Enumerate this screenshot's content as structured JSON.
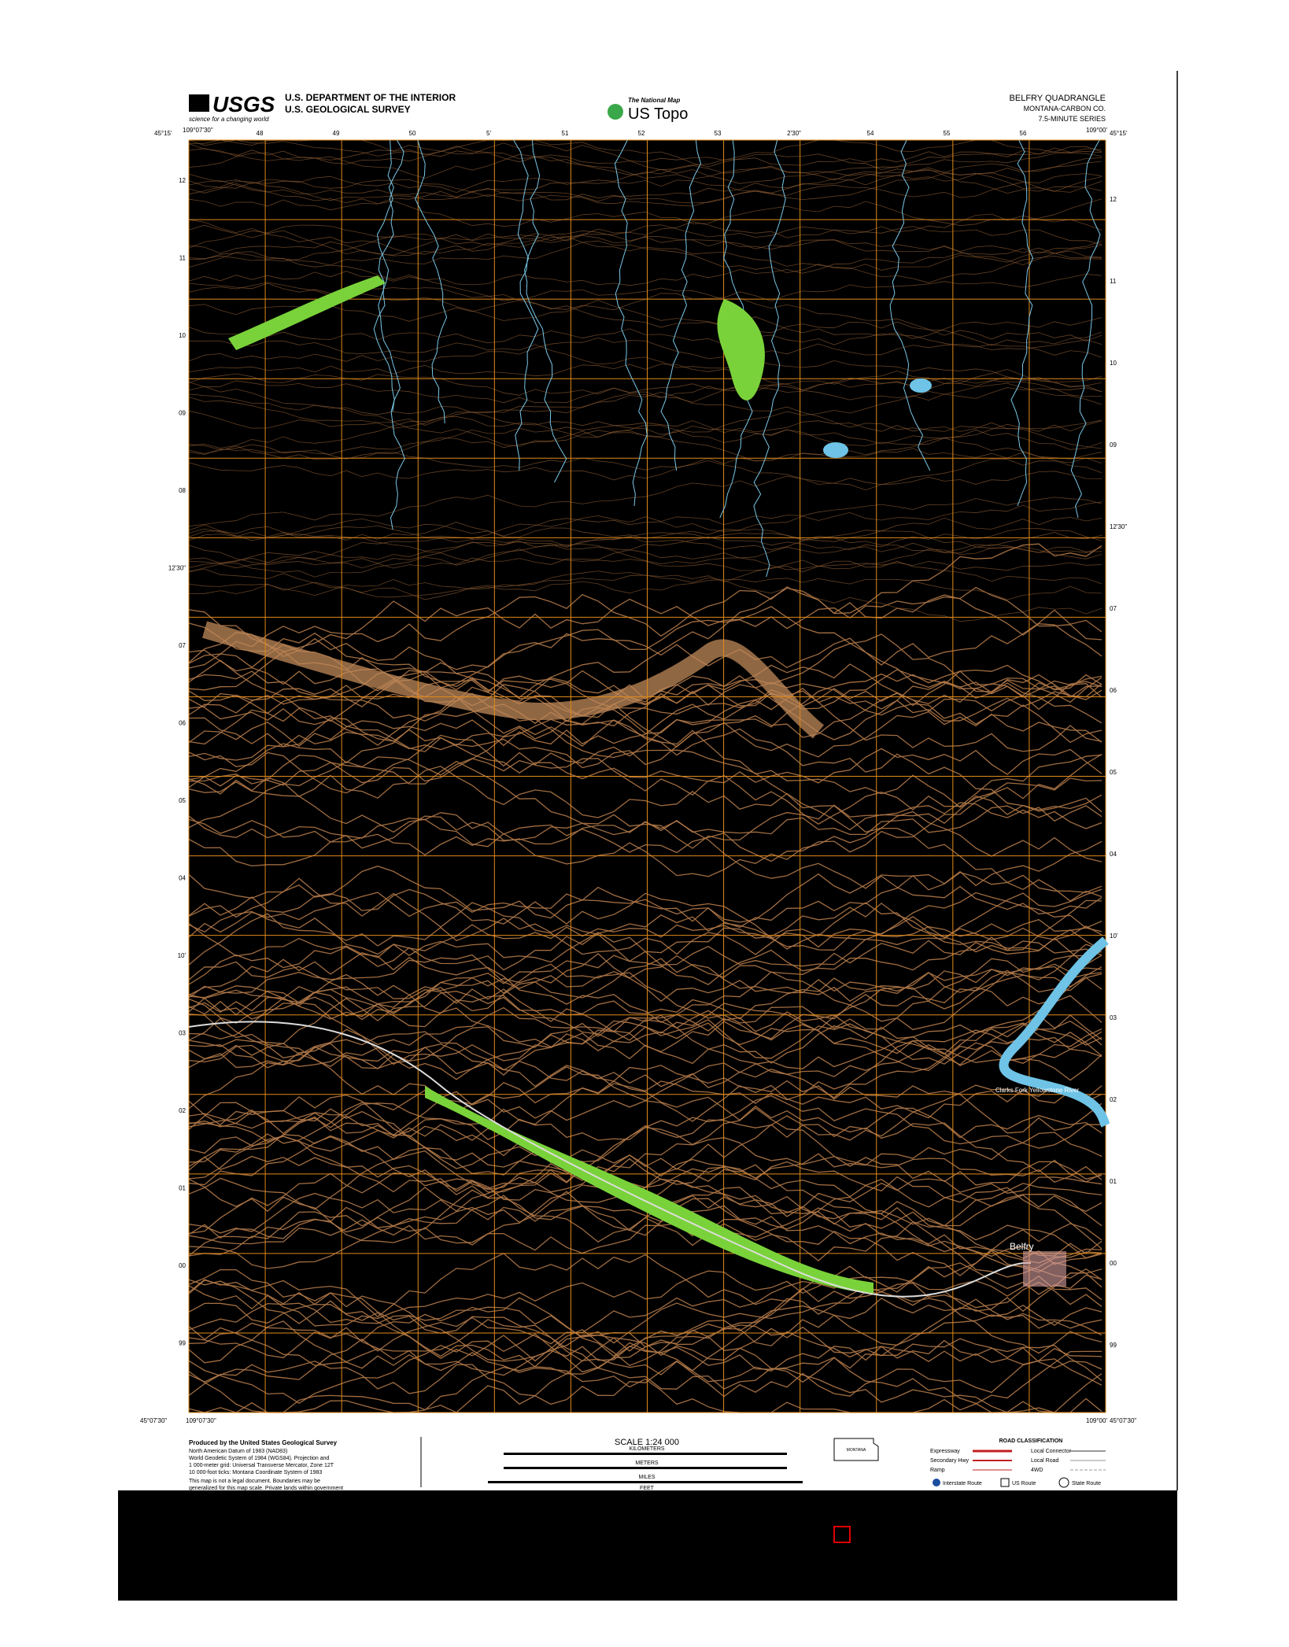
{
  "header": {
    "logo": "USGS",
    "logo_tagline": "science for a changing world",
    "agency_line1": "U.S. DEPARTMENT OF THE INTERIOR",
    "agency_line2": "U.S. GEOLOGICAL SURVEY",
    "national_map": "The National Map",
    "us_topo": "US Topo",
    "quad_title": "BELFRY QUADRANGLE",
    "quad_state": "MONTANA-CARBON CO.",
    "quad_series": "7.5-MINUTE SERIES"
  },
  "map": {
    "corner_top_left": "45°15'",
    "lon_top_left": "109°07'30\"",
    "lon_top_right": "109°00'",
    "corner_top_right": "45°15'",
    "corner_bottom_left": "45°07'30\"",
    "lon_bottom_left": "109°07'30\"",
    "lon_bottom_right": "109°00'",
    "corner_bottom_right": "45°07'30\"",
    "top_labels": [
      "48",
      "49",
      "50",
      "5'",
      "51",
      "52",
      "53",
      "2'30\"",
      "54",
      "55",
      "56"
    ],
    "left_labels": [
      "12",
      "11",
      "10",
      "09",
      "08",
      "12'30\"",
      "07",
      "06",
      "05",
      "04",
      "10'",
      "03",
      "02",
      "01",
      "00",
      "99"
    ],
    "right_labels": [
      "12",
      "11",
      "10",
      "09",
      "12'30\"",
      "07",
      "06",
      "05",
      "04",
      "10'",
      "03",
      "02",
      "01",
      "00",
      "99"
    ],
    "places": [
      "Belfry",
      "Clarks Fork Yellowstone River"
    ]
  },
  "footer": {
    "producer": "Produced by the United States Geological Survey",
    "datum_lines": [
      "North American Datum of 1983 (NAD83)",
      "World Geodetic System of 1984 (WGS84). Projection and",
      "1 000-meter grid: Universal Transverse Mercator, Zone 12T",
      "10 000-foot ticks: Montana Coordinate System of 1983"
    ],
    "disclaimer": [
      "This map is not a legal document. Boundaries may be",
      "generalized for this map scale. Private lands within government"
    ],
    "scale": "SCALE 1:24 000",
    "scale_units": [
      "KILOMETERS",
      "METERS",
      "MILES",
      "FEET"
    ],
    "road_title": "ROAD CLASSIFICATION",
    "roads": [
      "Expressway",
      "Secondary Hwy",
      "Ramp",
      "Local Connector",
      "Local Road",
      "4WD"
    ],
    "shields": [
      "Interstate Route",
      "US Route",
      "State Route"
    ],
    "state": "MONTANA"
  }
}
